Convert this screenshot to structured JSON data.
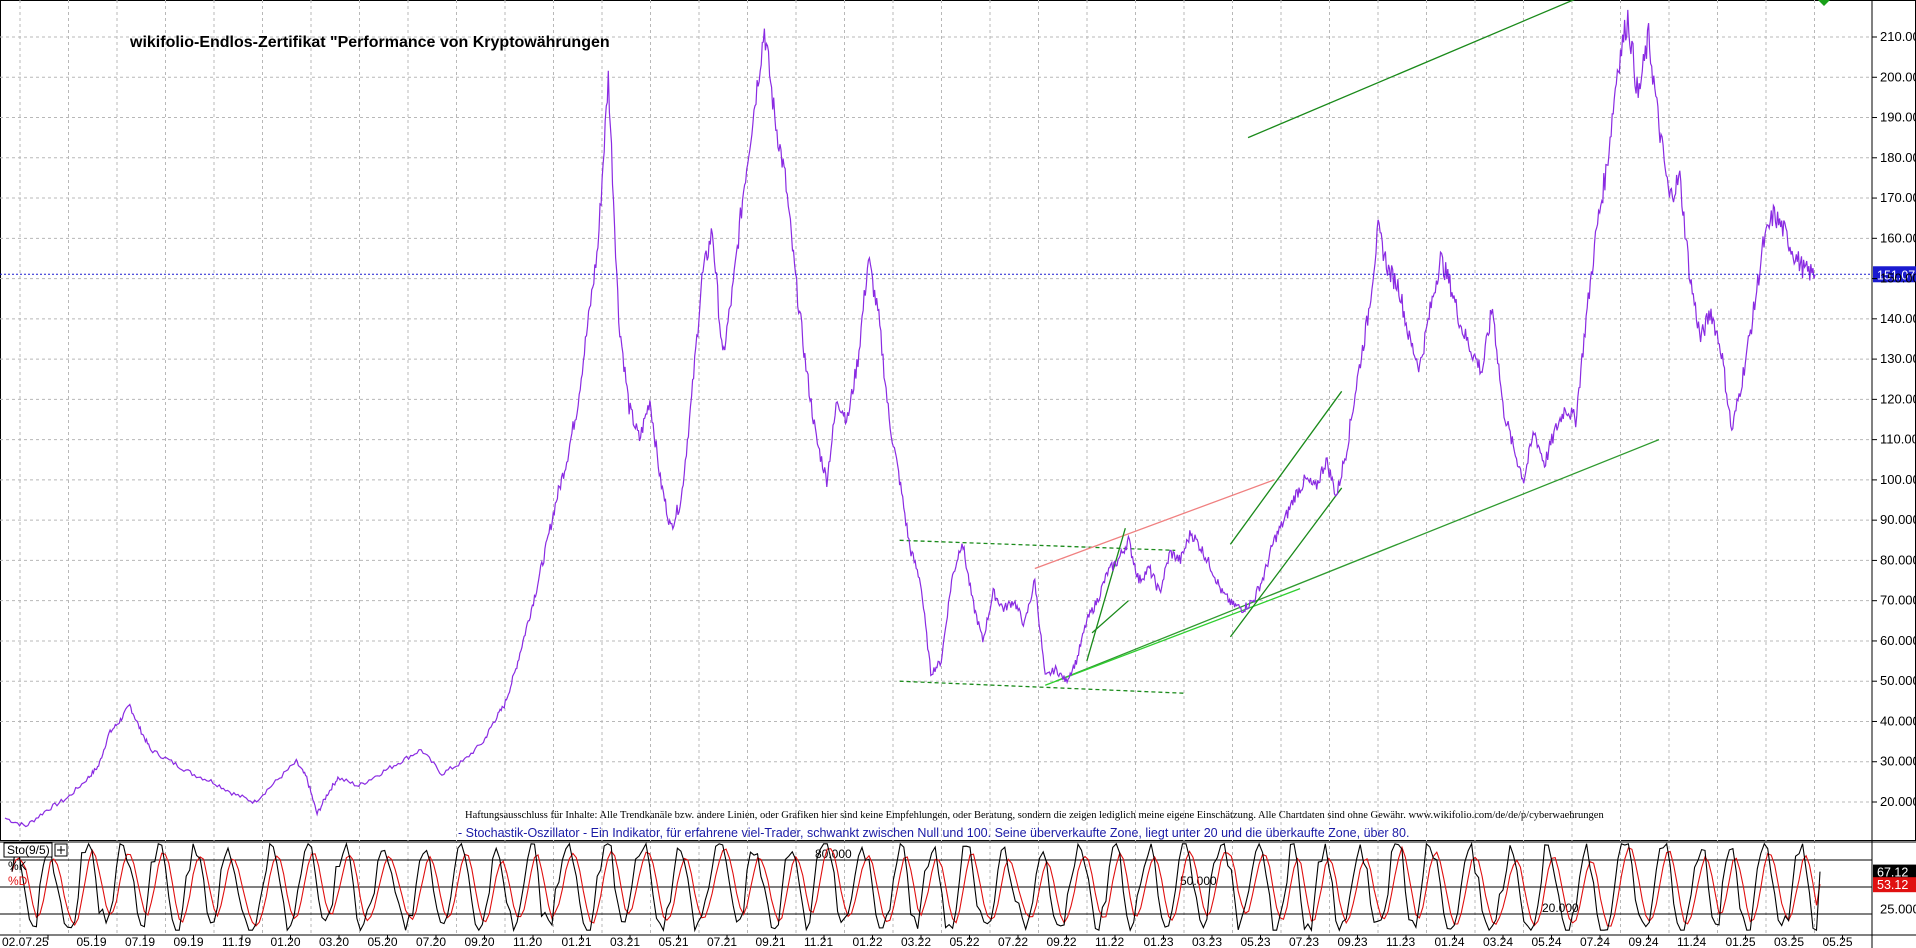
{
  "chart_data": {
    "type": "line",
    "title": "wikifolio-Endlos-Zertifikat \"Performance von Kryptowährungen",
    "y_ticks": [
      20,
      30,
      40,
      50,
      60,
      70,
      80,
      90,
      100,
      110,
      120,
      130,
      140,
      150,
      160,
      170,
      180,
      190,
      200,
      210
    ],
    "y_tick_labels": [
      "20.000",
      "30.000",
      "40.000",
      "50.000",
      "60.000",
      "70.000",
      "80.000",
      "90.000",
      "100.00",
      "110.00",
      "120.00",
      "130.00",
      "140.00",
      "150.00",
      "160.00",
      "170.00",
      "180.00",
      "190.00",
      "200.00",
      "210.00"
    ],
    "ylim": [
      10,
      220
    ],
    "x_tick_labels": [
      "02.07.25",
      "05.19",
      "07.19",
      "09.19",
      "11.19",
      "01.20",
      "03.20",
      "05.20",
      "07.20",
      "09.20",
      "11.20",
      "01.21",
      "03.21",
      "05.21",
      "07.21",
      "09.21",
      "11.21",
      "01.22",
      "03.22",
      "05.22",
      "07.22",
      "09.22",
      "11.22",
      "01.23",
      "03.23",
      "05.23",
      "07.23",
      "09.23",
      "11.23",
      "01.24",
      "03.24",
      "05.24",
      "07.24",
      "09.24",
      "11.24",
      "01.25",
      "03.25",
      "05.25"
    ],
    "last_price": 151.07,
    "last_price_label": "151.07",
    "series": [
      {
        "name": "wikifolio",
        "color": "#8a2be2",
        "points": [
          [
            0,
            16
          ],
          [
            2,
            14
          ],
          [
            4,
            18
          ],
          [
            6,
            21
          ],
          [
            8,
            26
          ],
          [
            9,
            29
          ],
          [
            10,
            37
          ],
          [
            11,
            40
          ],
          [
            12,
            44
          ],
          [
            13,
            38
          ],
          [
            14,
            33
          ],
          [
            16,
            30
          ],
          [
            18,
            27
          ],
          [
            20,
            25
          ],
          [
            22,
            22
          ],
          [
            24,
            20
          ],
          [
            26,
            25
          ],
          [
            28,
            30
          ],
          [
            29,
            26
          ],
          [
            30,
            17
          ],
          [
            31,
            22
          ],
          [
            32,
            26
          ],
          [
            34,
            24
          ],
          [
            36,
            27
          ],
          [
            38,
            30
          ],
          [
            40,
            33
          ],
          [
            42,
            27
          ],
          [
            44,
            30
          ],
          [
            46,
            35
          ],
          [
            47,
            40
          ],
          [
            48,
            44
          ],
          [
            49,
            52
          ],
          [
            50,
            62
          ],
          [
            51,
            72
          ],
          [
            52,
            83
          ],
          [
            53,
            95
          ],
          [
            54,
            105
          ],
          [
            55,
            118
          ],
          [
            56,
            138
          ],
          [
            57,
            158
          ],
          [
            58,
            200
          ],
          [
            59,
            140
          ],
          [
            60,
            118
          ],
          [
            61,
            110
          ],
          [
            62,
            120
          ],
          [
            63,
            100
          ],
          [
            64,
            88
          ],
          [
            65,
            95
          ],
          [
            66,
            120
          ],
          [
            67,
            150
          ],
          [
            68,
            162
          ],
          [
            69,
            130
          ],
          [
            70,
            148
          ],
          [
            71,
            172
          ],
          [
            72,
            192
          ],
          [
            73,
            212
          ],
          [
            74,
            190
          ],
          [
            75,
            175
          ],
          [
            76,
            150
          ],
          [
            77,
            128
          ],
          [
            78,
            110
          ],
          [
            79,
            100
          ],
          [
            80,
            120
          ],
          [
            81,
            115
          ],
          [
            82,
            130
          ],
          [
            83,
            155
          ],
          [
            84,
            140
          ],
          [
            85,
            115
          ],
          [
            86,
            100
          ],
          [
            87,
            83
          ],
          [
            88,
            75
          ],
          [
            89,
            52
          ],
          [
            90,
            55
          ],
          [
            91,
            75
          ],
          [
            92,
            85
          ],
          [
            93,
            70
          ],
          [
            94,
            60
          ],
          [
            95,
            72
          ],
          [
            96,
            68
          ],
          [
            97,
            70
          ],
          [
            98,
            64
          ],
          [
            99,
            75
          ],
          [
            100,
            51
          ],
          [
            101,
            53
          ],
          [
            102,
            50
          ],
          [
            103,
            55
          ],
          [
            104,
            65
          ],
          [
            105,
            70
          ],
          [
            106,
            77
          ],
          [
            107,
            80
          ],
          [
            108,
            85
          ],
          [
            109,
            75
          ],
          [
            110,
            78
          ],
          [
            111,
            72
          ],
          [
            112,
            82
          ],
          [
            113,
            80
          ],
          [
            114,
            87
          ],
          [
            115,
            83
          ],
          [
            116,
            78
          ],
          [
            117,
            72
          ],
          [
            118,
            69
          ],
          [
            119,
            68
          ],
          [
            120,
            70
          ],
          [
            121,
            76
          ],
          [
            122,
            85
          ],
          [
            123,
            90
          ],
          [
            124,
            96
          ],
          [
            125,
            100
          ],
          [
            126,
            98
          ],
          [
            127,
            105
          ],
          [
            128,
            96
          ],
          [
            129,
            108
          ],
          [
            130,
            125
          ],
          [
            131,
            140
          ],
          [
            132,
            162
          ],
          [
            133,
            152
          ],
          [
            134,
            148
          ],
          [
            135,
            135
          ],
          [
            136,
            128
          ],
          [
            137,
            142
          ],
          [
            138,
            155
          ],
          [
            139,
            148
          ],
          [
            140,
            138
          ],
          [
            141,
            132
          ],
          [
            142,
            127
          ],
          [
            143,
            143
          ],
          [
            144,
            118
          ],
          [
            145,
            108
          ],
          [
            146,
            100
          ],
          [
            147,
            112
          ],
          [
            148,
            104
          ],
          [
            149,
            112
          ],
          [
            150,
            118
          ],
          [
            151,
            115
          ],
          [
            152,
            140
          ],
          [
            153,
            162
          ],
          [
            154,
            178
          ],
          [
            155,
            202
          ],
          [
            156,
            215
          ],
          [
            157,
            195
          ],
          [
            158,
            210
          ],
          [
            159,
            188
          ],
          [
            160,
            170
          ],
          [
            161,
            175
          ],
          [
            162,
            150
          ],
          [
            163,
            135
          ],
          [
            164,
            142
          ],
          [
            165,
            132
          ],
          [
            166,
            112
          ],
          [
            167,
            125
          ],
          [
            168,
            140
          ],
          [
            169,
            158
          ],
          [
            170,
            166
          ],
          [
            171,
            162
          ],
          [
            172,
            156
          ],
          [
            173,
            152
          ],
          [
            174,
            151
          ]
        ]
      }
    ],
    "trend_lines": [
      {
        "color": "#1a8a1a",
        "style": "solid",
        "from": [
          119.5,
          185
        ],
        "to": [
          151.5,
          220
        ]
      },
      {
        "color": "#2f9a2f",
        "style": "solid",
        "from": [
          101,
          50
        ],
        "to": [
          159,
          110
        ]
      },
      {
        "color": "#2fcf2f",
        "style": "solid",
        "from": [
          100,
          49
        ],
        "to": [
          124.5,
          73
        ]
      },
      {
        "color": "#1a8a1a",
        "style": "dashed",
        "from": [
          86,
          85
        ],
        "to": [
          112.5,
          82.5
        ]
      },
      {
        "color": "#1a8a1a",
        "style": "dashed",
        "from": [
          86,
          50
        ],
        "to": [
          113.5,
          47
        ]
      },
      {
        "color": "#f08080",
        "style": "solid",
        "from": [
          99,
          78
        ],
        "to": [
          122,
          100
        ]
      },
      {
        "color": "#1a8a1a",
        "style": "solid",
        "from": [
          104,
          55
        ],
        "to": [
          107.7,
          88
        ]
      },
      {
        "color": "#1a8a1a",
        "style": "solid",
        "from": [
          104.5,
          62
        ],
        "to": [
          108,
          70
        ]
      },
      {
        "color": "#1a8a1a",
        "style": "solid",
        "from": [
          117.8,
          84
        ],
        "to": [
          128.5,
          122
        ]
      },
      {
        "color": "#1a8a1a",
        "style": "solid",
        "from": [
          117.8,
          61
        ],
        "to": [
          128.5,
          98
        ]
      }
    ],
    "disclaimer": "Haftungsausschluss für Inhalte: Alle Trendkanäle bzw. andere Linien, oder Grafiken hier sind keine Empfehlungen, oder Beratung, sondern die zeigen lediglich meine eigene Einschätzung. Alle Chartdaten sind ohne Gewähr.  www.wikifolio.com/de/de/p/cyberwaehrungen",
    "subtitle": "- Stochastik-Oszillator - Ein Indikator, für erfahrene viel-Trader, schwankt zwischen Null und 100. Seine überverkaufte Zone, liegt unter 20 und die überkaufte Zone, über 80.",
    "indicator": {
      "name": "Sto(9/5)",
      "k_label": "%K",
      "d_label": "%D",
      "k_value": 67.12,
      "k_value_label": "67.12",
      "d_value": 53.12,
      "d_value_label": "53.12",
      "ylim": [
        0,
        100
      ],
      "levels": [
        {
          "value": 80,
          "label": "80.000"
        },
        {
          "value": 50,
          "label": "50.000"
        },
        {
          "value": 20,
          "label": "20.000"
        }
      ],
      "y_tick_label": "25.000",
      "k_color": "#000000",
      "d_color": "#e01010"
    },
    "grid": true
  }
}
